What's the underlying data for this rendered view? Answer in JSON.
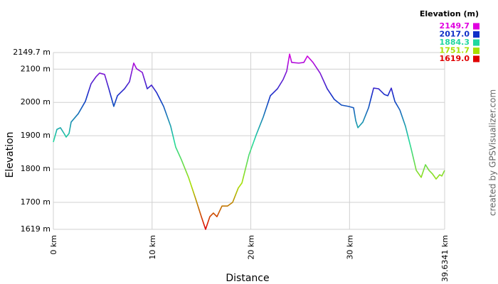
{
  "chart_data": {
    "type": "line",
    "x_label": "Distance",
    "y_label": "Elevation",
    "watermark": "created by GPSVisualizer.com",
    "x": [
      0,
      0.36,
      0.72,
      1.08,
      1.3,
      1.59,
      1.8,
      2.52,
      3.24,
      3.82,
      4.32,
      4.68,
      5.19,
      5.62,
      6.12,
      6.49,
      7.21,
      7.71,
      8.14,
      8.43,
      9.01,
      9.51,
      9.94,
      10.45,
      11.17,
      11.89,
      12.39,
      12.97,
      13.69,
      14.41,
      14.99,
      15.42,
      15.85,
      16.21,
      16.57,
      17.08,
      17.65,
      18.16,
      18.73,
      19.1,
      19.82,
      20.54,
      21.26,
      21.98,
      22.7,
      23.28,
      23.64,
      23.93,
      24.14,
      24.86,
      25.37,
      25.73,
      26.3,
      27.02,
      27.74,
      28.46,
      29.18,
      29.9,
      30.41,
      30.63,
      30.85,
      31.35,
      31.93,
      32.44,
      32.94,
      33.52,
      33.88,
      34.23,
      34.59,
      35.1,
      35.67,
      36.25,
      36.76,
      37.26,
      37.69,
      38.05,
      38.41,
      38.77,
      39.13,
      39.35,
      39.63
    ],
    "values": [
      1881,
      1919,
      1924,
      1907,
      1896,
      1907,
      1941,
      1966,
      2003,
      2056,
      2077,
      2088,
      2084,
      2041,
      1988,
      2020,
      2041,
      2062,
      2118,
      2101,
      2090,
      2041,
      2052,
      2030,
      1988,
      1928,
      1866,
      1828,
      1775,
      1711,
      1657,
      1619,
      1657,
      1668,
      1657,
      1689,
      1689,
      1700,
      1743,
      1758,
      1843,
      1902,
      1956,
      2020,
      2041,
      2069,
      2094,
      2145,
      2120,
      2118,
      2120,
      2139,
      2120,
      2088,
      2041,
      2009,
      1992,
      1988,
      1984,
      1945,
      1924,
      1941,
      1984,
      2043,
      2041,
      2024,
      2020,
      2043,
      2003,
      1977,
      1928,
      1860,
      1796,
      1775,
      1813,
      1796,
      1785,
      1770,
      1783,
      1779,
      1796
    ],
    "xlim": [
      0,
      39.6341
    ],
    "xticks": [
      {
        "value": 0,
        "label": "0 km"
      },
      {
        "value": 10,
        "label": "10 km"
      },
      {
        "value": 20,
        "label": "20 km"
      },
      {
        "value": 30,
        "label": "30 km"
      },
      {
        "value": 39.6341,
        "label": "39.6341 km"
      }
    ],
    "ylim": [
      1619,
      2149.7
    ],
    "yticks": [
      {
        "value": 1619,
        "label": "1619 m"
      },
      {
        "value": 1700,
        "label": "1700 m"
      },
      {
        "value": 1800,
        "label": "1800 m"
      },
      {
        "value": 1900,
        "label": "1900 m"
      },
      {
        "value": 2000,
        "label": "2000 m"
      },
      {
        "value": 2100,
        "label": "2100 m"
      },
      {
        "value": 2149.7,
        "label": "2149.7 m"
      }
    ],
    "grid": true,
    "color_scale": {
      "title": "Elevation (m)",
      "stops": [
        {
          "value": 2149.7,
          "color": "#e000e0"
        },
        {
          "value": 2017,
          "label": "2017.0",
          "color": "#1030c8"
        },
        {
          "value": 1884.3,
          "color": "#20d8a0"
        },
        {
          "value": 1751.7,
          "color": "#a8e000"
        },
        {
          "value": 1619,
          "label": "1619.0",
          "color": "#e00000"
        }
      ]
    }
  }
}
